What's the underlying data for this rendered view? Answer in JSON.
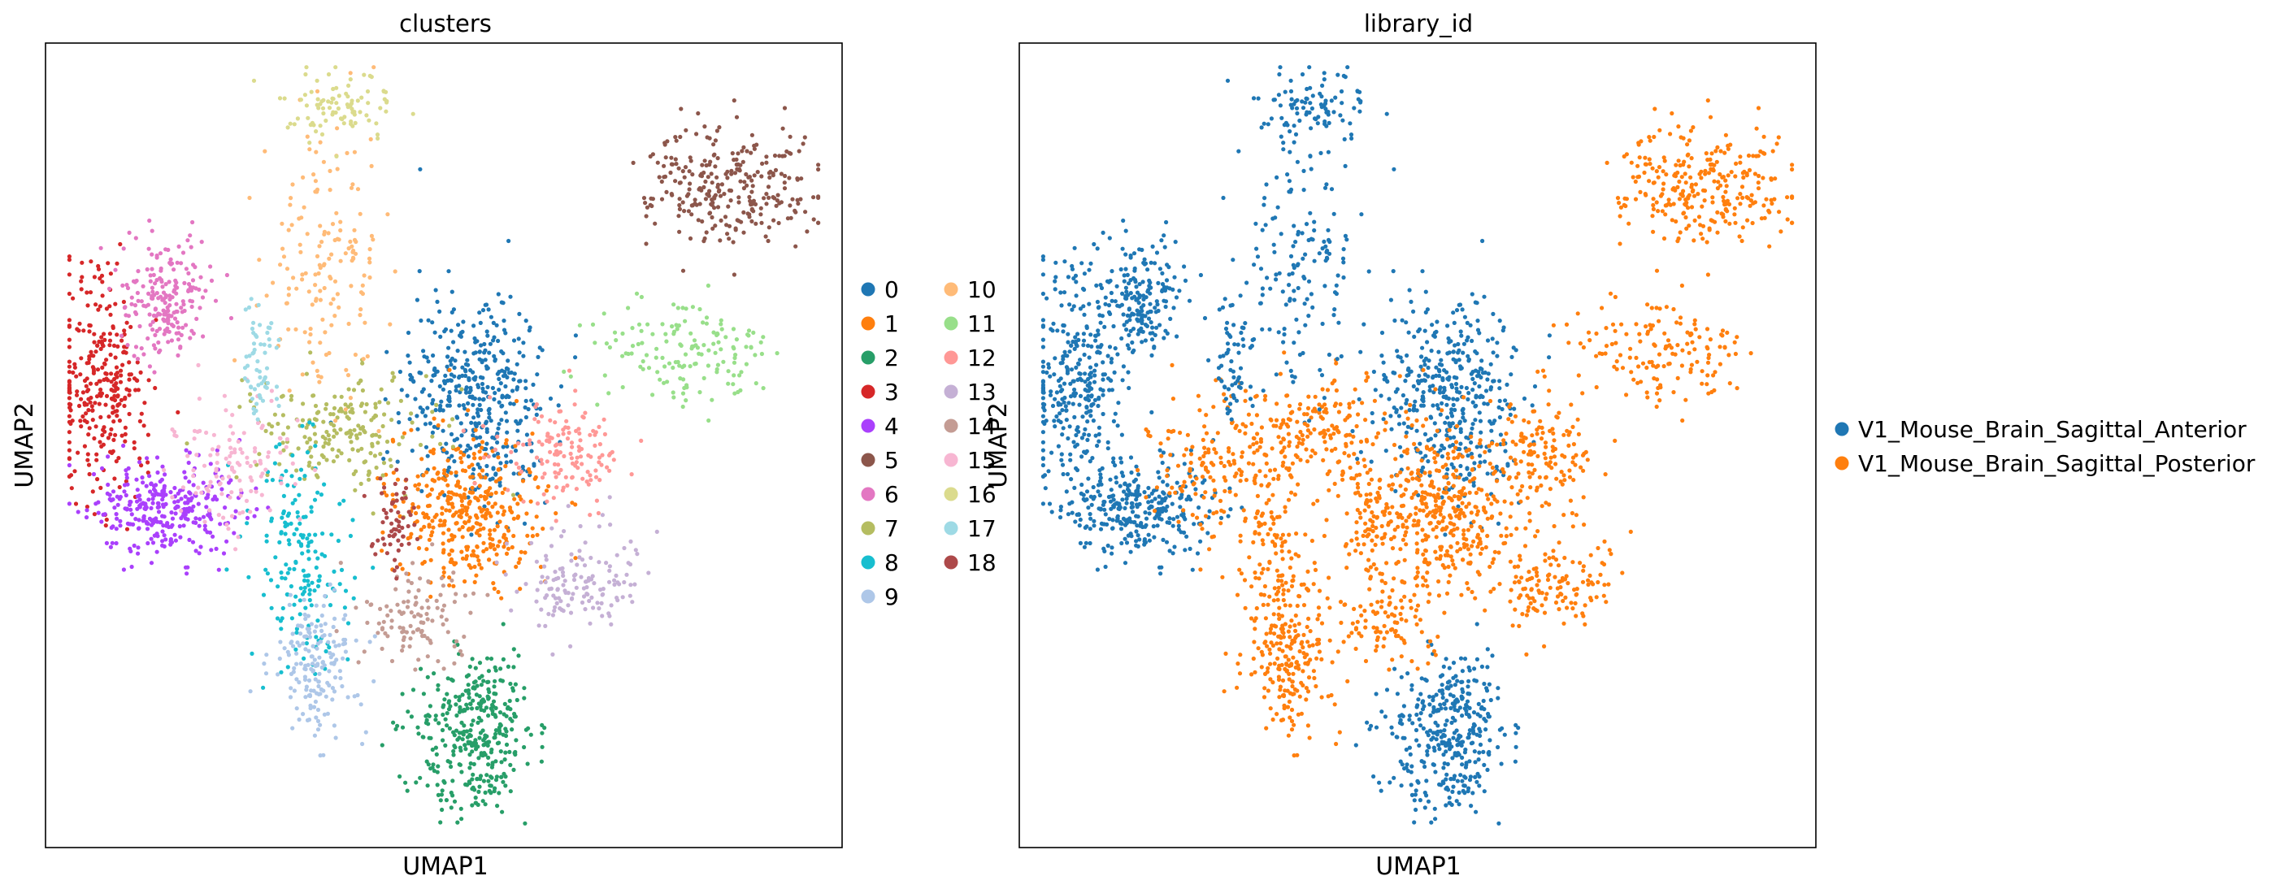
{
  "chart_data": [
    {
      "type": "scatter",
      "title": "clusters",
      "xlabel": "UMAP1",
      "ylabel": "UMAP2",
      "ticks": "none",
      "legend_position": "right (2 columns)",
      "legend": [
        {
          "label": "0",
          "color": "#1f77b4"
        },
        {
          "label": "1",
          "color": "#ff7f0e"
        },
        {
          "label": "2",
          "color": "#279e68"
        },
        {
          "label": "3",
          "color": "#d62728"
        },
        {
          "label": "4",
          "color": "#aa40fc"
        },
        {
          "label": "5",
          "color": "#8c564b"
        },
        {
          "label": "6",
          "color": "#e377c2"
        },
        {
          "label": "7",
          "color": "#b5bd61"
        },
        {
          "label": "8",
          "color": "#17becf"
        },
        {
          "label": "9",
          "color": "#aec7e8"
        },
        {
          "label": "10",
          "color": "#ffbb78"
        },
        {
          "label": "11",
          "color": "#98df8a"
        },
        {
          "label": "12",
          "color": "#ff9896"
        },
        {
          "label": "13",
          "color": "#c5b0d5"
        },
        {
          "label": "14",
          "color": "#c49c94"
        },
        {
          "label": "15",
          "color": "#f7b6d2"
        },
        {
          "label": "16",
          "color": "#dbdb8d"
        },
        {
          "label": "17",
          "color": "#9edae5"
        },
        {
          "label": "18",
          "color": "#ad494a"
        }
      ],
      "clusters": [
        {
          "id": "0",
          "center": [
            0.54,
            0.44
          ],
          "spread": [
            0.06,
            0.09
          ],
          "n": 420
        },
        {
          "id": "1",
          "center": [
            0.53,
            0.58
          ],
          "spread": [
            0.06,
            0.06
          ],
          "n": 380
        },
        {
          "id": "2",
          "center": [
            0.54,
            0.86
          ],
          "spread": [
            0.05,
            0.07
          ],
          "n": 360
        },
        {
          "id": "3",
          "center": [
            0.07,
            0.43
          ],
          "spread": [
            0.04,
            0.09
          ],
          "n": 300
        },
        {
          "id": "4",
          "center": [
            0.15,
            0.58
          ],
          "spread": [
            0.06,
            0.04
          ],
          "n": 300
        },
        {
          "id": "5",
          "center": [
            0.86,
            0.18
          ],
          "spread": [
            0.07,
            0.05
          ],
          "n": 280
        },
        {
          "id": "6",
          "center": [
            0.15,
            0.32
          ],
          "spread": [
            0.04,
            0.05
          ],
          "n": 200
        },
        {
          "id": "7",
          "center": [
            0.37,
            0.48
          ],
          "spread": [
            0.08,
            0.05
          ],
          "n": 200
        },
        {
          "id": "8",
          "center": [
            0.32,
            0.64
          ],
          "spread": [
            0.04,
            0.09
          ],
          "n": 180
        },
        {
          "id": "9",
          "center": [
            0.34,
            0.77
          ],
          "spread": [
            0.04,
            0.06
          ],
          "n": 170
        },
        {
          "id": "10",
          "center": [
            0.35,
            0.27
          ],
          "spread": [
            0.05,
            0.1
          ],
          "n": 160
        },
        {
          "id": "11",
          "center": [
            0.81,
            0.38
          ],
          "spread": [
            0.08,
            0.04
          ],
          "n": 150
        },
        {
          "id": "12",
          "center": [
            0.65,
            0.51
          ],
          "spread": [
            0.05,
            0.04
          ],
          "n": 140
        },
        {
          "id": "13",
          "center": [
            0.67,
            0.67
          ],
          "spread": [
            0.05,
            0.04
          ],
          "n": 140
        },
        {
          "id": "14",
          "center": [
            0.46,
            0.72
          ],
          "spread": [
            0.05,
            0.04
          ],
          "n": 110
        },
        {
          "id": "15",
          "center": [
            0.24,
            0.52
          ],
          "spread": [
            0.05,
            0.06
          ],
          "n": 120
        },
        {
          "id": "16",
          "center": [
            0.37,
            0.08
          ],
          "spread": [
            0.04,
            0.03
          ],
          "n": 90
        },
        {
          "id": "17",
          "center": [
            0.27,
            0.39
          ],
          "spread": [
            0.015,
            0.05
          ],
          "n": 60
        },
        {
          "id": "18",
          "center": [
            0.44,
            0.6
          ],
          "spread": [
            0.02,
            0.04
          ],
          "n": 60
        }
      ]
    },
    {
      "type": "scatter",
      "title": "library_id",
      "xlabel": "UMAP1",
      "ylabel": "UMAP2",
      "ticks": "none",
      "legend_position": "right",
      "legend": [
        {
          "label": "V1_Mouse_Brain_Sagittal_Anterior",
          "color": "#1f77b4"
        },
        {
          "label": "V1_Mouse_Brain_Sagittal_Posterior",
          "color": "#ff7f0e"
        }
      ],
      "composition": {
        "V1_Mouse_Brain_Sagittal_Anterior": [
          "0",
          "2",
          "3",
          "4",
          "6",
          "10",
          "16",
          "17"
        ],
        "V1_Mouse_Brain_Sagittal_Posterior": [
          "1",
          "5",
          "7",
          "8",
          "9",
          "11",
          "12",
          "13",
          "14",
          "15",
          "18"
        ]
      }
    }
  ]
}
